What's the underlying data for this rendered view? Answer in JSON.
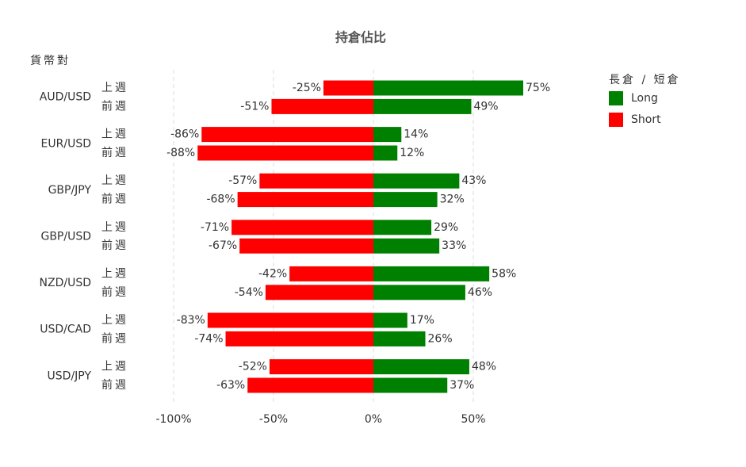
{
  "chart_data": {
    "type": "diverging-bar",
    "orientation": "horizontal",
    "title": "持倉佔比",
    "y_axis_label": "貨幣對",
    "categories": [
      "AUD/USD",
      "EUR/USD",
      "GBP/JPY",
      "GBP/USD",
      "NZD/USD",
      "USD/CAD",
      "USD/JPY"
    ],
    "subcategories": [
      "上週",
      "前週"
    ],
    "legend_title": "長倉 / 短倉",
    "legend_position": "right",
    "series": [
      {
        "name": "Long",
        "color": "#008000",
        "values": [
          [
            75,
            49
          ],
          [
            14,
            12
          ],
          [
            43,
            32
          ],
          [
            29,
            33
          ],
          [
            58,
            46
          ],
          [
            17,
            26
          ],
          [
            48,
            37
          ]
        ],
        "value_labels": [
          [
            "75%",
            "49%"
          ],
          [
            "14%",
            "12%"
          ],
          [
            "43%",
            "32%"
          ],
          [
            "29%",
            "33%"
          ],
          [
            "58%",
            "46%"
          ],
          [
            "17%",
            "26%"
          ],
          [
            "48%",
            "37%"
          ]
        ]
      },
      {
        "name": "Short",
        "color": "#ff0000",
        "values": [
          [
            -25,
            -51
          ],
          [
            -86,
            -88
          ],
          [
            -57,
            -68
          ],
          [
            -71,
            -67
          ],
          [
            -42,
            -54
          ],
          [
            -83,
            -74
          ],
          [
            -52,
            -63
          ]
        ],
        "value_labels": [
          [
            "-25%",
            "-51%"
          ],
          [
            "-86%",
            "-88%"
          ],
          [
            "-57%",
            "-68%"
          ],
          [
            "-71%",
            "-67%"
          ],
          [
            "-42%",
            "-54%"
          ],
          [
            "-83%",
            "-74%"
          ],
          [
            "-52%",
            "-63%"
          ]
        ]
      }
    ],
    "xlim": [
      -100,
      100
    ],
    "xticks": [
      {
        "value": -100,
        "label": "-100%"
      },
      {
        "value": -50,
        "label": "-50%"
      },
      {
        "value": 0,
        "label": "0%"
      },
      {
        "value": 50,
        "label": "50%"
      }
    ],
    "grid": true
  }
}
